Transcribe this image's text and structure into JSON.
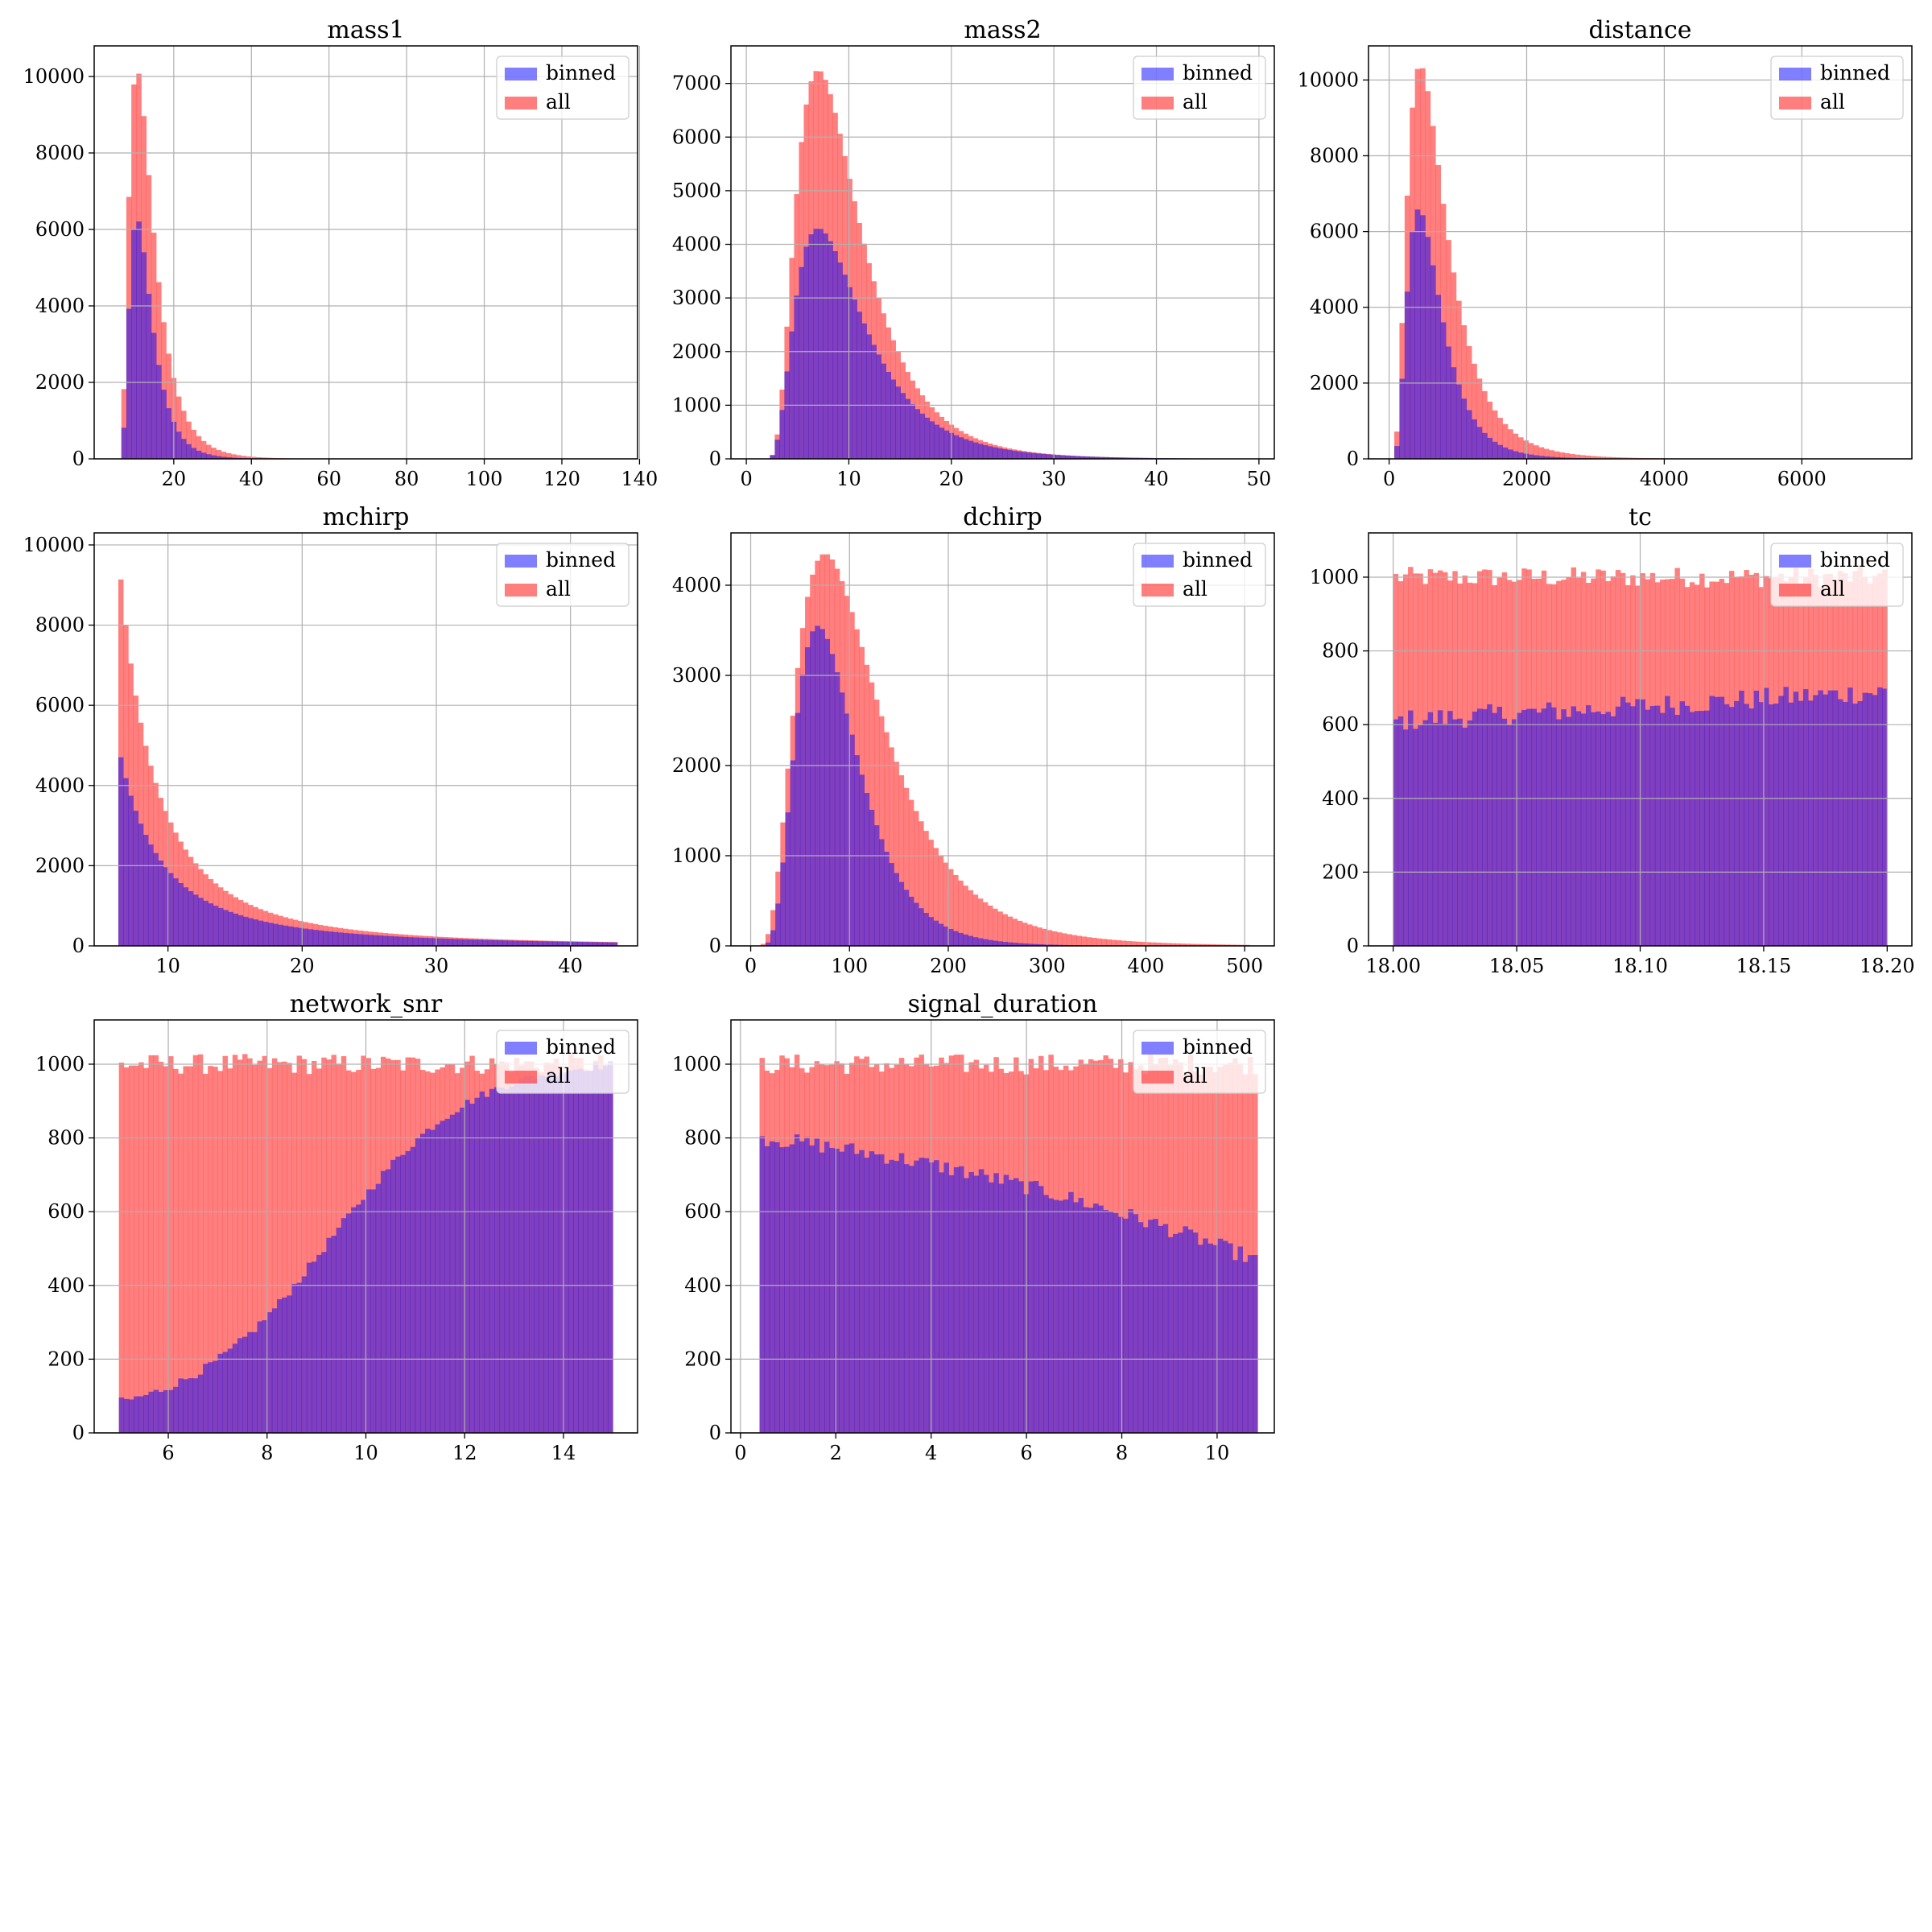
{
  "colors": {
    "binned": "#0000ff",
    "all": "#ff0000",
    "bar_alpha": 0.5,
    "grid": "#b0b0b0",
    "axes": "#000000"
  },
  "chart_data": [
    {
      "type": "bar",
      "title": "mass1",
      "xlabel": "",
      "ylabel": "",
      "xlim": [
        -0.5,
        139.5
      ],
      "ylim": [
        0,
        10800
      ],
      "xticks": [
        20,
        40,
        60,
        80,
        100,
        120,
        140
      ],
      "xtick_labels": [
        "20",
        "40",
        "60",
        "80",
        "100",
        "120",
        "140"
      ],
      "yticks": [
        0,
        2000,
        4000,
        6000,
        8000,
        10000
      ],
      "ytick_labels": [
        "0",
        "2000",
        "4000",
        "6000",
        "8000",
        "10000"
      ],
      "grid": true,
      "legend": "top-right",
      "bins": {
        "start": 6.5,
        "end": 135,
        "count": 100
      },
      "series": [
        {
          "name": "binned",
          "color": "#0000ff",
          "profile": "lognormal",
          "peak": 6300,
          "mode": 10.5,
          "sigma": 0.55,
          "log_offset": 5.5
        },
        {
          "name": "all",
          "color": "#ff0000",
          "profile": "lognormal",
          "peak": 10200,
          "mode": 10.5,
          "sigma": 0.6,
          "log_offset": 5.5
        }
      ]
    },
    {
      "type": "bar",
      "title": "mass2",
      "xlabel": "",
      "ylabel": "",
      "xlim": [
        -1.5,
        51.5
      ],
      "ylim": [
        0,
        7700
      ],
      "xticks": [
        0,
        10,
        20,
        30,
        40,
        50
      ],
      "xtick_labels": [
        "0",
        "10",
        "20",
        "30",
        "40",
        "50"
      ],
      "yticks": [
        0,
        1000,
        2000,
        3000,
        4000,
        5000,
        6000,
        7000
      ],
      "ytick_labels": [
        "0",
        "1000",
        "2000",
        "3000",
        "4000",
        "5000",
        "6000",
        "7000"
      ],
      "grid": true,
      "legend": "top-right",
      "bins": {
        "start": 2.3,
        "end": 49.5,
        "count": 100
      },
      "series": [
        {
          "name": "binned",
          "color": "#0000ff",
          "profile": "lognormal",
          "peak": 4300,
          "mode": 7.0,
          "sigma": 0.58,
          "log_offset": 1.5
        },
        {
          "name": "all",
          "color": "#ff0000",
          "profile": "lognormal",
          "peak": 7250,
          "mode": 7.0,
          "sigma": 0.55,
          "log_offset": 1.5
        }
      ]
    },
    {
      "type": "bar",
      "title": "distance",
      "xlabel": "",
      "ylabel": "",
      "xlim": [
        -300,
        7600
      ],
      "ylim": [
        0,
        10900
      ],
      "xticks": [
        0,
        2000,
        4000,
        6000
      ],
      "xtick_labels": [
        "0",
        "2000",
        "4000",
        "6000"
      ],
      "yticks": [
        0,
        2000,
        4000,
        6000,
        8000,
        10000
      ],
      "ytick_labels": [
        "0",
        "2000",
        "4000",
        "6000",
        "8000",
        "10000"
      ],
      "grid": true,
      "legend": "top-right",
      "bins": {
        "start": 0,
        "end": 7500,
        "count": 100
      },
      "series": [
        {
          "name": "binned",
          "color": "#0000ff",
          "profile": "lognormal",
          "peak": 6600,
          "mode": 430,
          "sigma": 0.55,
          "log_offset": 0
        },
        {
          "name": "all",
          "color": "#ff0000",
          "profile": "lognormal",
          "peak": 10400,
          "mode": 450,
          "sigma": 0.6,
          "log_offset": 0
        }
      ]
    },
    {
      "type": "bar",
      "title": "mchirp",
      "xlabel": "",
      "ylabel": "",
      "xlim": [
        4.5,
        45.0
      ],
      "ylim": [
        0,
        10300
      ],
      "xticks": [
        10,
        20,
        30,
        40
      ],
      "xtick_labels": [
        "10",
        "20",
        "30",
        "40"
      ],
      "yticks": [
        0,
        2000,
        4000,
        6000,
        8000,
        10000
      ],
      "ytick_labels": [
        "0",
        "2000",
        "4000",
        "6000",
        "8000",
        "10000"
      ],
      "grid": true,
      "legend": "top-right",
      "bins": {
        "start": 6.3,
        "end": 43.5,
        "count": 100
      },
      "series": [
        {
          "name": "binned",
          "color": "#0000ff",
          "profile": "power",
          "peak": 5000,
          "mode": 6.3,
          "exponent": 2.1
        },
        {
          "name": "all",
          "color": "#ff0000",
          "profile": "power",
          "peak": 9800,
          "mode": 6.3,
          "exponent": 2.4
        }
      ]
    },
    {
      "type": "bar",
      "title": "dchirp",
      "xlabel": "",
      "ylabel": "",
      "xlim": [
        -20,
        530
      ],
      "ylim": [
        0,
        4580
      ],
      "xticks": [
        0,
        100,
        200,
        300,
        400,
        500
      ],
      "xtick_labels": [
        "0",
        "100",
        "200",
        "300",
        "400",
        "500"
      ],
      "yticks": [
        0,
        1000,
        2000,
        3000,
        4000
      ],
      "ytick_labels": [
        "0",
        "1000",
        "2000",
        "3000",
        "4000"
      ],
      "grid": true,
      "legend": "top-right",
      "bins": {
        "start": 5,
        "end": 505,
        "count": 100
      },
      "series": [
        {
          "name": "binned",
          "color": "#0000ff",
          "profile": "lognormal",
          "peak": 3550,
          "mode": 68,
          "sigma": 0.45,
          "log_offset": 0
        },
        {
          "name": "all",
          "color": "#ff0000",
          "profile": "lognormal",
          "peak": 4350,
          "mode": 75,
          "sigma": 0.55,
          "log_offset": 0
        }
      ]
    },
    {
      "type": "bar",
      "title": "tc",
      "xlabel": "",
      "ylabel": "",
      "xlim": [
        17.99,
        18.21
      ],
      "ylim": [
        0,
        1120
      ],
      "xticks": [
        18.0,
        18.05,
        18.1,
        18.15,
        18.2
      ],
      "xtick_labels": [
        "18.00",
        "18.05",
        "18.10",
        "18.15",
        "18.20"
      ],
      "yticks": [
        0,
        200,
        400,
        600,
        800,
        1000
      ],
      "ytick_labels": [
        "0",
        "200",
        "400",
        "600",
        "800",
        "1000"
      ],
      "grid": true,
      "legend": "top-right",
      "bins": {
        "start": 18.0,
        "end": 18.2,
        "count": 100
      },
      "series": [
        {
          "name": "binned",
          "color": "#0000ff",
          "profile": "linear",
          "start_value": 610,
          "end_value": 690,
          "noise": 30
        },
        {
          "name": "all",
          "color": "#ff0000",
          "profile": "linear",
          "start_value": 1000,
          "end_value": 1000,
          "noise": 28
        }
      ]
    },
    {
      "type": "bar",
      "title": "network_snr",
      "xlabel": "",
      "ylabel": "",
      "xlim": [
        4.5,
        15.5
      ],
      "ylim": [
        0,
        1120
      ],
      "xticks": [
        6,
        8,
        10,
        12,
        14
      ],
      "xtick_labels": [
        "6",
        "8",
        "10",
        "12",
        "14"
      ],
      "yticks": [
        0,
        200,
        400,
        600,
        800,
        1000
      ],
      "ytick_labels": [
        "0",
        "200",
        "400",
        "600",
        "800",
        "1000"
      ],
      "grid": true,
      "legend": "top-right",
      "bins": {
        "start": 5,
        "end": 15,
        "count": 100
      },
      "series": [
        {
          "name": "binned",
          "color": "#0000ff",
          "profile": "sigmoid",
          "low": 40,
          "high": 1015,
          "center": 9.3,
          "width": 1.4,
          "noise": 12
        },
        {
          "name": "all",
          "color": "#ff0000",
          "profile": "linear",
          "start_value": 1000,
          "end_value": 1000,
          "noise": 28
        }
      ]
    },
    {
      "type": "bar",
      "title": "signal_duration",
      "xlabel": "",
      "ylabel": "",
      "xlim": [
        -0.2,
        11.2
      ],
      "ylim": [
        0,
        1120
      ],
      "xticks": [
        0,
        2,
        4,
        6,
        8,
        10
      ],
      "xtick_labels": [
        "0",
        "2",
        "4",
        "6",
        "8",
        "10"
      ],
      "yticks": [
        0,
        200,
        400,
        600,
        800,
        1000
      ],
      "ytick_labels": [
        "0",
        "200",
        "400",
        "600",
        "800",
        "1000"
      ],
      "grid": true,
      "legend": "top-right",
      "bins": {
        "start": 0.4,
        "end": 10.85,
        "count": 100
      },
      "series": [
        {
          "name": "binned",
          "color": "#0000ff",
          "profile": "concave",
          "start_value": 800,
          "end_value": 470,
          "noise": 22
        },
        {
          "name": "all",
          "color": "#ff0000",
          "profile": "linear",
          "start_value": 1000,
          "end_value": 1000,
          "noise": 28
        }
      ]
    }
  ]
}
